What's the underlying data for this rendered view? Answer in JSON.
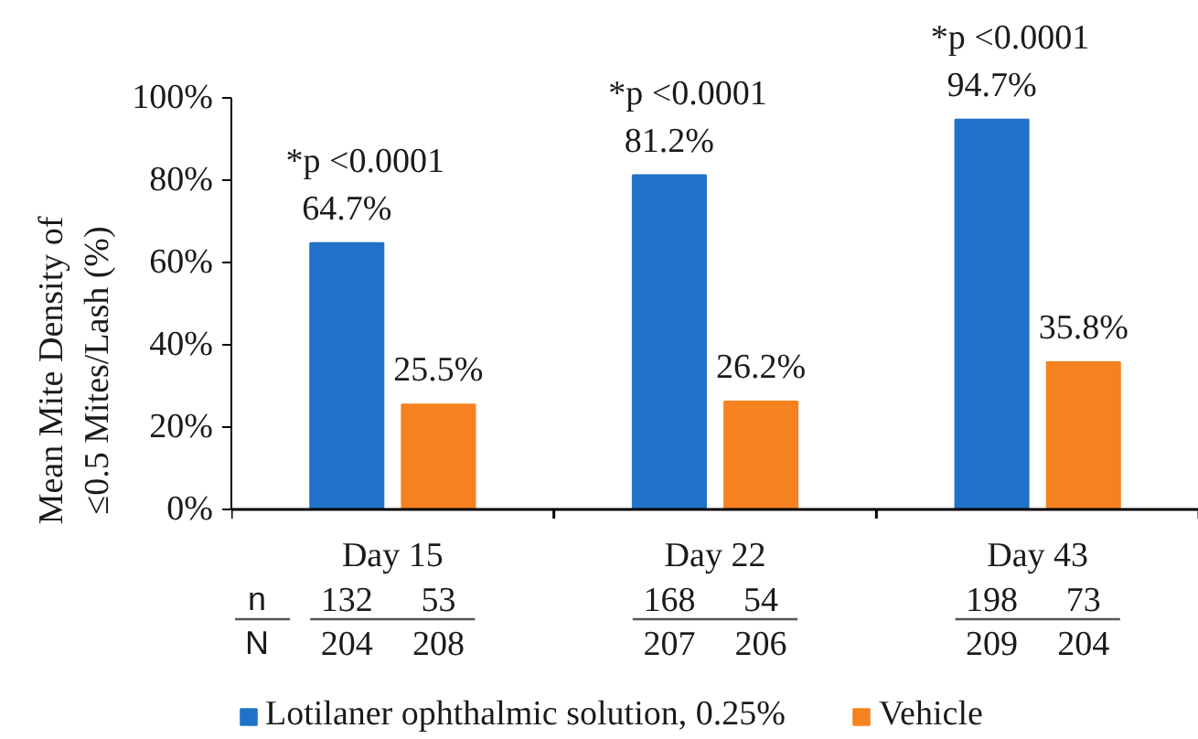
{
  "chart_data": {
    "type": "bar",
    "ylabel": "Mean Mite Density of ≤0.5 Mites/Lash (%)",
    "categories": [
      "Day 15",
      "Day 22",
      "Day 43"
    ],
    "series": [
      {
        "name": "Lotilaner ophthalmic solution, 0.25%",
        "color": "#1f72c8",
        "values": [
          64.7,
          81.2,
          94.7
        ],
        "value_labels": [
          "64.7%",
          "81.2%",
          "94.7%"
        ]
      },
      {
        "name": "Vehicle",
        "color": "#f6821f",
        "values": [
          25.5,
          26.2,
          35.8
        ],
        "value_labels": [
          "25.5%",
          "26.2%",
          "35.8%"
        ]
      }
    ],
    "ylim": [
      0,
      100
    ],
    "yticks": [
      {
        "value": 0,
        "label": "0%"
      },
      {
        "value": 20,
        "label": "20%"
      },
      {
        "value": 40,
        "label": "40%"
      },
      {
        "value": 60,
        "label": "60%"
      },
      {
        "value": 80,
        "label": "80%"
      },
      {
        "value": 100,
        "label": "100%"
      }
    ],
    "grid": false,
    "legend": "bottom",
    "annotations": [
      "*p <0.0001",
      "*p <0.0001",
      "*p <0.0001",
      "n",
      "132",
      "53",
      "168",
      "54",
      "198",
      "73",
      "N",
      "204",
      "208",
      "207",
      "206",
      "209",
      "204"
    ]
  }
}
